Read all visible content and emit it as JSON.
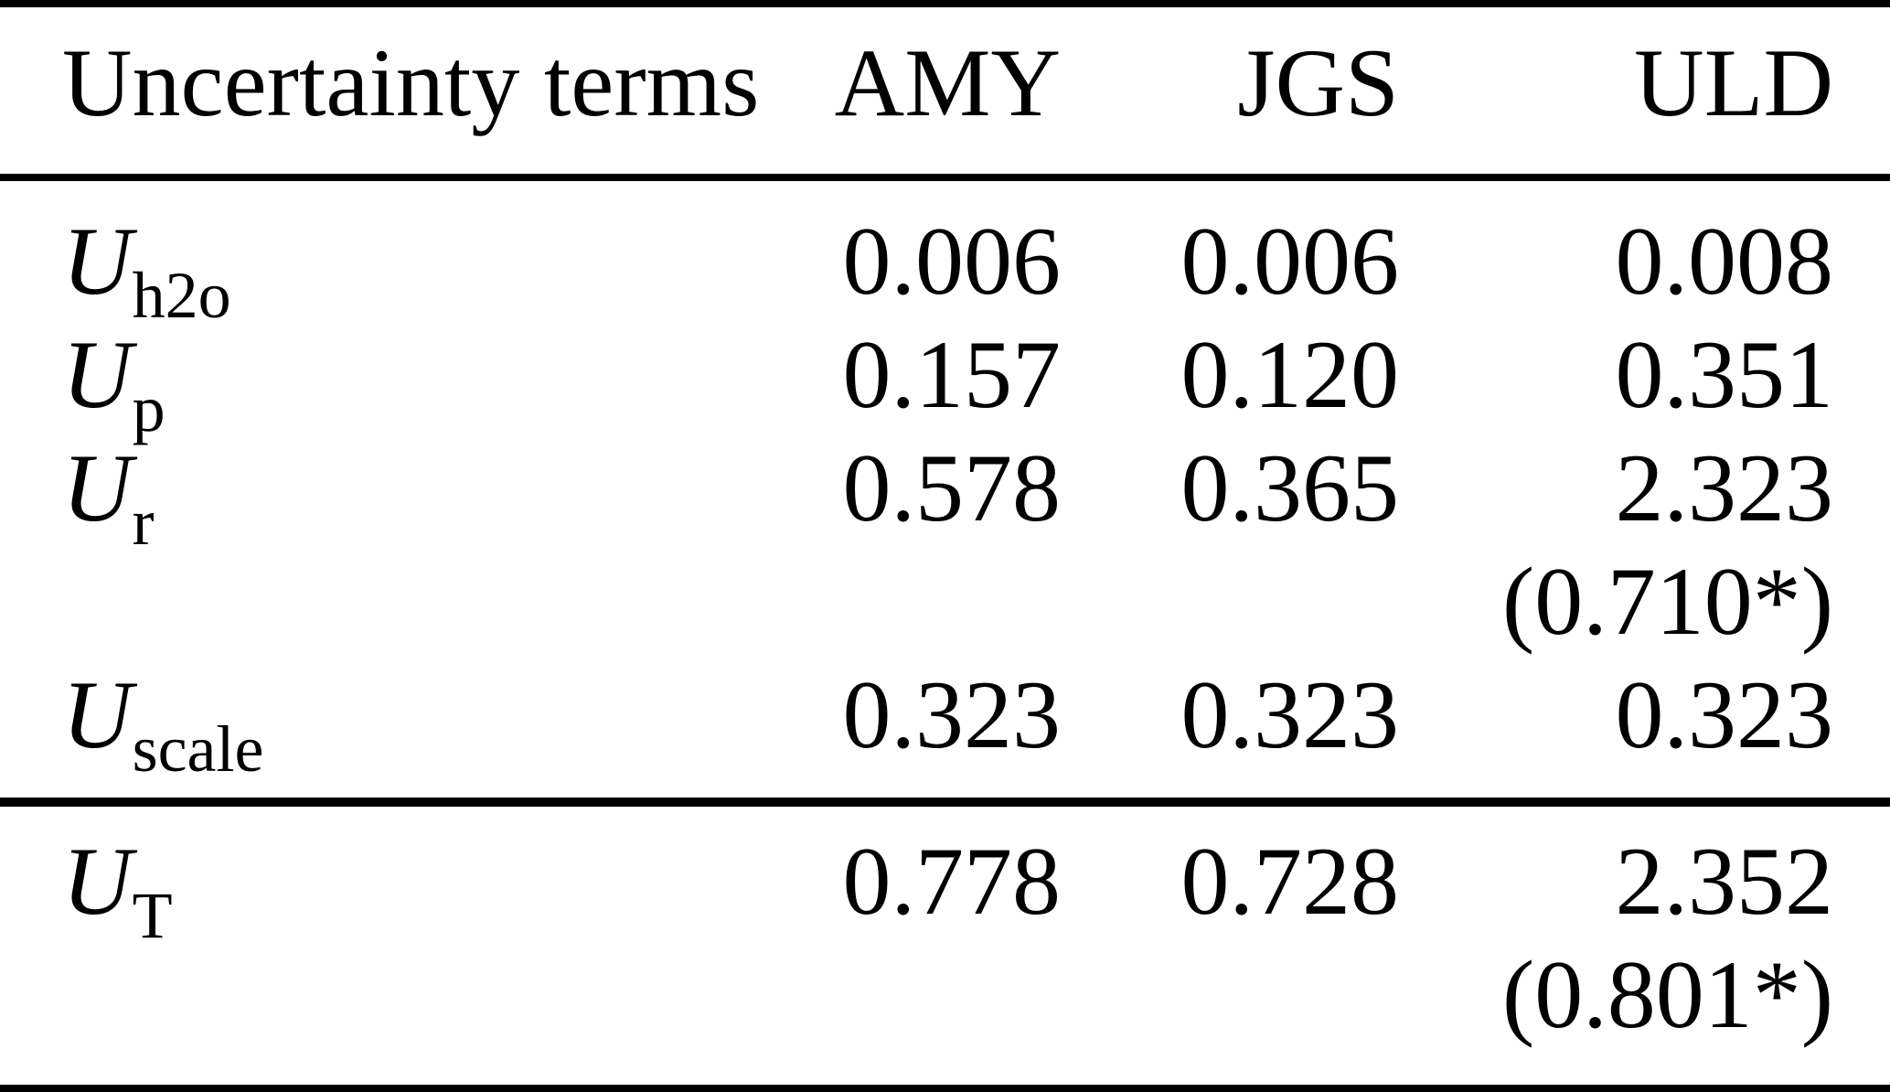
{
  "table": {
    "title_semantic": "uncertainty-terms-table",
    "colors": {
      "text": "#000000",
      "background": "#ffffff",
      "rule": "#000000"
    },
    "header": {
      "label": "Uncertainty terms",
      "col_amy": "AMY",
      "col_jgs": "JGS",
      "col_uld": "ULD"
    },
    "body_rows": [
      {
        "label_main": "U",
        "label_sub": "h2o",
        "amy": "0.006",
        "jgs": "0.006",
        "uld": "0.008"
      },
      {
        "label_main": "U",
        "label_sub": "p",
        "amy": "0.157",
        "jgs": "0.120",
        "uld": "0.351"
      },
      {
        "label_main": "U",
        "label_sub": "r",
        "amy": "0.578",
        "jgs": "0.365",
        "uld": "2.323"
      },
      {
        "label_main": "",
        "label_sub": "",
        "amy": "",
        "jgs": "",
        "uld": "(0.710*)"
      },
      {
        "label_main": "U",
        "label_sub": "scale",
        "amy": "0.323",
        "jgs": "0.323",
        "uld": "0.323"
      }
    ],
    "footer_rows": [
      {
        "label_main": "U",
        "label_sub": "T",
        "amy": "0.778",
        "jgs": "0.728",
        "uld": "2.352"
      },
      {
        "label_main": "",
        "label_sub": "",
        "amy": "",
        "jgs": "",
        "uld": "(0.801*)"
      }
    ]
  }
}
